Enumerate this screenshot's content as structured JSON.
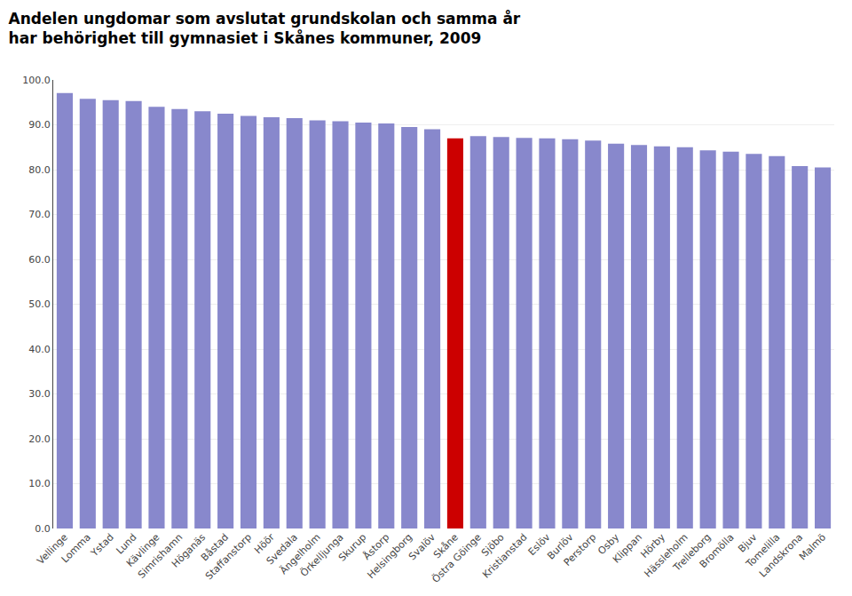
{
  "chart_data": {
    "type": "bar",
    "title": "Andelen ungdomar som avslutat grundskolan och samma år\nhar behörighet till gymnasiet i Skånes kommuner, 2009",
    "categories": [
      "Vellinge",
      "Lomma",
      "Ystad",
      "Lund",
      "Kävlinge",
      "Simrishamn",
      "Höganäs",
      "Båstad",
      "Staffanstorp",
      "Höör",
      "Svedala",
      "Ängelholm",
      "Örkelljunga",
      "Skurup",
      "Åstorp",
      "Helsingborg",
      "Svalöv",
      "Skåne",
      "Östra Göinge",
      "Sjöbo",
      "Kristianstad",
      "Eslöv",
      "Burlöv",
      "Perstorp",
      "Osby",
      "Klippan",
      "Hörby",
      "Hässleholm",
      "Trelleborg",
      "Bromölla",
      "Bjuv",
      "Tomelilla",
      "Landskrona",
      "Malmö"
    ],
    "values": [
      97.1,
      95.8,
      95.5,
      95.3,
      94.0,
      93.5,
      93.0,
      92.5,
      92.0,
      91.7,
      91.5,
      91.0,
      90.8,
      90.5,
      90.3,
      89.5,
      89.0,
      87.0,
      87.5,
      87.3,
      87.1,
      87.0,
      86.8,
      86.5,
      85.8,
      85.5,
      85.2,
      85.0,
      84.3,
      84.0,
      83.5,
      83.0,
      80.8,
      80.5
    ],
    "colors": [
      "#8888cc",
      "#8888cc",
      "#8888cc",
      "#8888cc",
      "#8888cc",
      "#8888cc",
      "#8888cc",
      "#8888cc",
      "#8888cc",
      "#8888cc",
      "#8888cc",
      "#8888cc",
      "#8888cc",
      "#8888cc",
      "#8888cc",
      "#8888cc",
      "#8888cc",
      "#cc0000",
      "#8888cc",
      "#8888cc",
      "#8888cc",
      "#8888cc",
      "#8888cc",
      "#8888cc",
      "#8888cc",
      "#8888cc",
      "#8888cc",
      "#8888cc",
      "#8888cc",
      "#8888cc",
      "#8888cc",
      "#8888cc",
      "#8888cc",
      "#8888cc"
    ],
    "ylim": [
      0,
      100
    ],
    "yticks": [
      {
        "value": 0,
        "label": "0.0"
      },
      {
        "value": 10,
        "label": "10.0"
      },
      {
        "value": 20,
        "label": "20.0"
      },
      {
        "value": 30,
        "label": "30.0"
      },
      {
        "value": 40,
        "label": "40.0"
      },
      {
        "value": 50,
        "label": "50.0"
      },
      {
        "value": 60,
        "label": "60.0"
      },
      {
        "value": 70,
        "label": "70.0"
      },
      {
        "value": 80,
        "label": "80.0"
      },
      {
        "value": 90,
        "label": "90.0"
      },
      {
        "value": 100,
        "label": "100.0"
      }
    ],
    "grid": true
  }
}
